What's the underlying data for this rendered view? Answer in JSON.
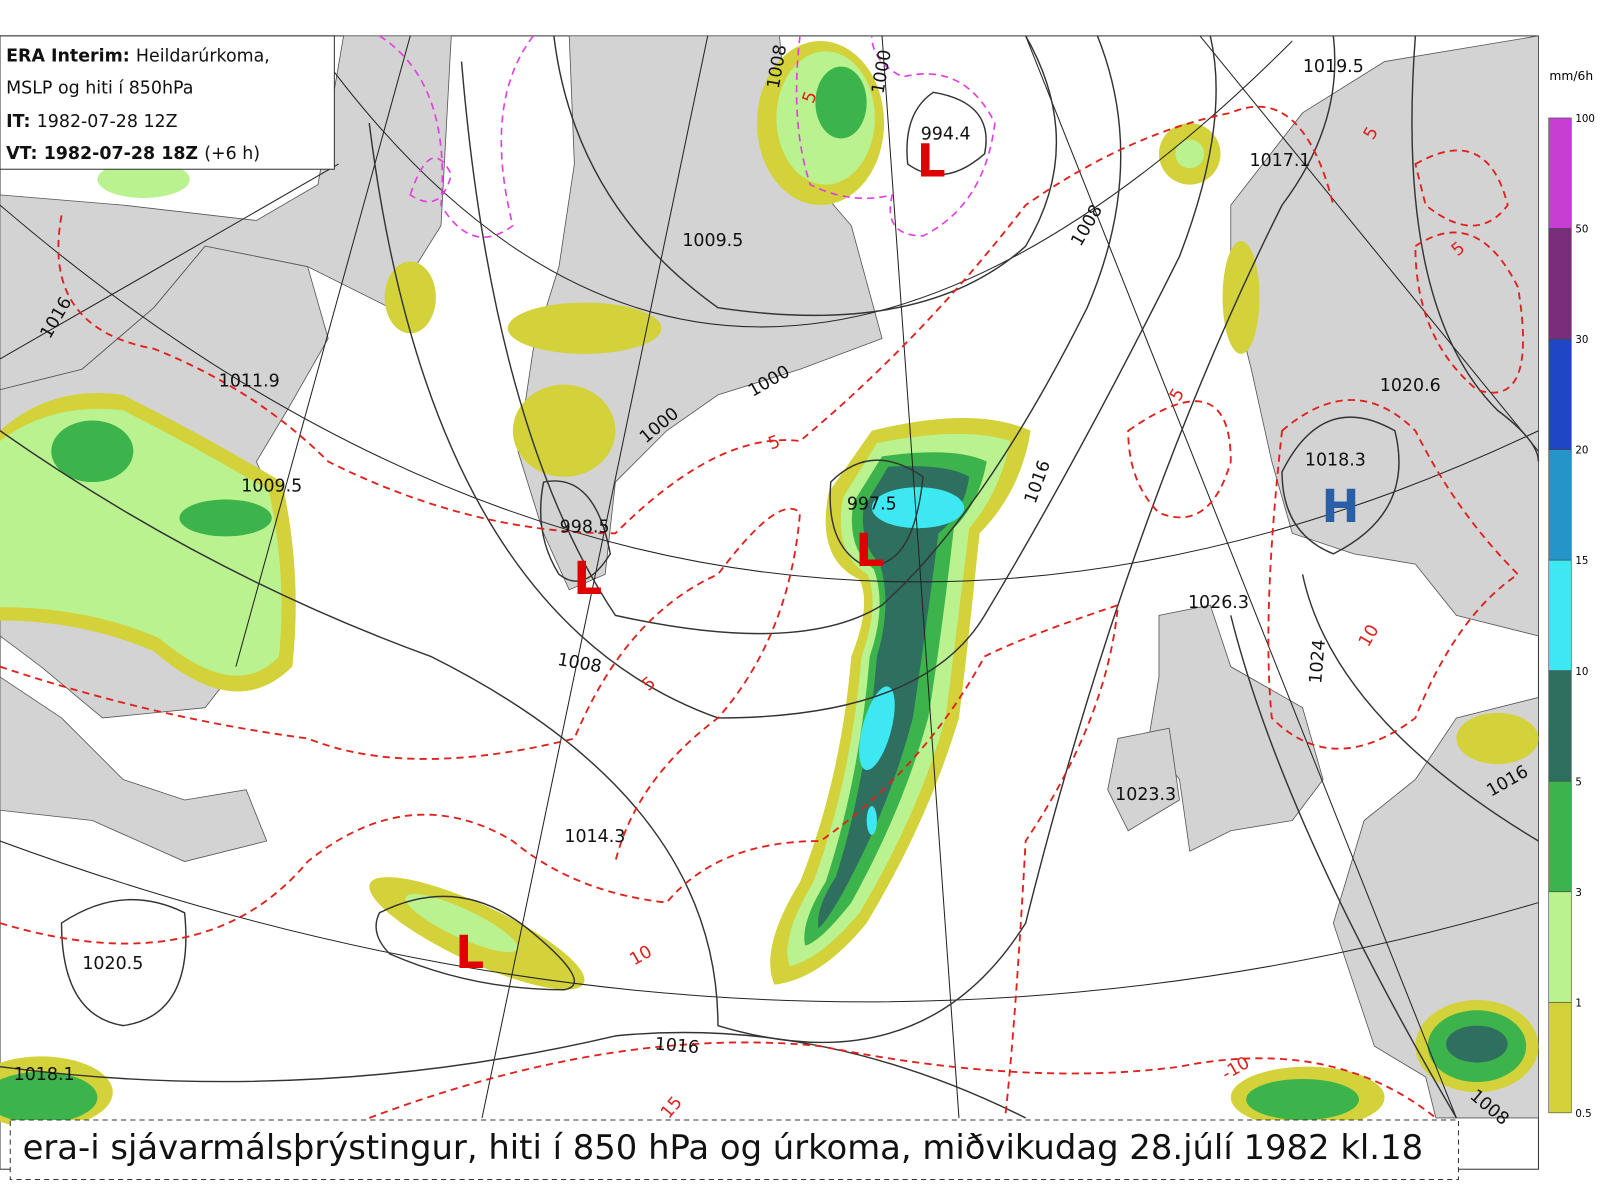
{
  "legend_box": {
    "lines": [
      {
        "key": "ERA Interim:",
        "text": "Heildarúrkoma,"
      },
      {
        "text": "MSLP og hiti í 850hPa"
      },
      {
        "key": "IT:",
        "text": "1982-07-28 12Z"
      },
      {
        "key": "VT:",
        "text": "1982-07-28 18Z",
        "extra": "(+6 h)"
      }
    ]
  },
  "pressure_values": [
    "1019.5",
    "1017.1",
    "994.4",
    "1009.5",
    "1011.9",
    "1009.5",
    "998.5",
    "997.5",
    "1018.3",
    "1020.6",
    "1026.3",
    "1023.3",
    "1014.3",
    "1020.5",
    "1018.1"
  ],
  "symbols": [
    "L",
    "L",
    "L",
    "L",
    "H"
  ],
  "isobar_labels": [
    "1008",
    "1000",
    "1008",
    "1000",
    "1000",
    "1016",
    "1016",
    "1008",
    "1024",
    "1016",
    "1016",
    "1008"
  ],
  "temperature_labels": [
    "5",
    "5",
    "5",
    "5",
    "5",
    "10",
    "10",
    "-10",
    "15",
    "5"
  ],
  "colorbar": {
    "unit": "mm/6h",
    "ticks": [
      0.5,
      1,
      3,
      5,
      10,
      15,
      20,
      30,
      50,
      100
    ],
    "colors": [
      "#d3d23a",
      "#b9f28e",
      "#3cb44b",
      "#2f6f5f",
      "#3ee8f2",
      "#2594c9",
      "#1f46c4",
      "#7a2d7a",
      "#c63fd2"
    ]
  },
  "caption": "era-i sjávarmálsþrýstingur, hiti í 850 hPa og úrkoma, miðvikudag 28.júlí 1982 kl.18"
}
